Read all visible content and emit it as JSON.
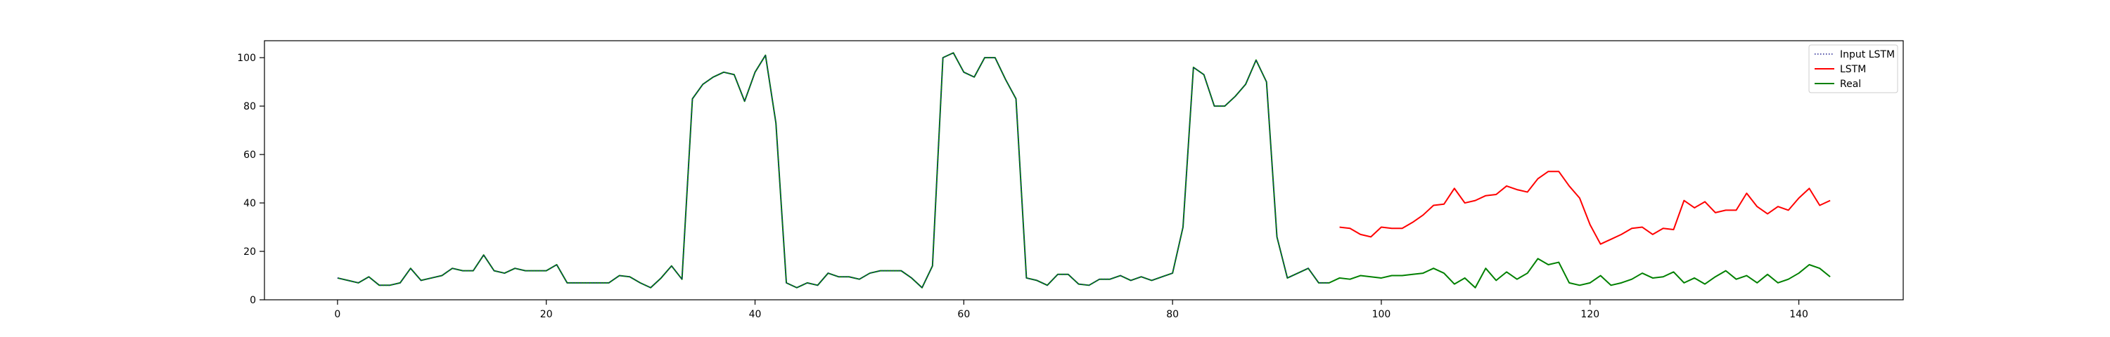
{
  "chart_data": {
    "type": "line",
    "title": "",
    "xlabel": "",
    "ylabel": "",
    "xlim": [
      -7,
      150
    ],
    "ylim": [
      0,
      107
    ],
    "xticks": [
      0,
      20,
      40,
      60,
      80,
      100,
      120,
      140
    ],
    "yticks": [
      0,
      20,
      40,
      60,
      80,
      100
    ],
    "grid": false,
    "legend_position": "top-right",
    "series": [
      {
        "name": "Input LSTM",
        "color": "#1f1f8f",
        "linestyle": "dotted",
        "x_start": 0,
        "values": [
          9,
          8,
          7,
          9.5,
          6,
          6,
          7,
          13,
          8,
          9,
          10,
          13,
          12,
          12,
          18.5,
          12,
          11,
          13,
          12,
          12,
          12,
          14.5,
          7,
          7,
          7,
          7,
          7,
          10,
          9.5,
          7,
          5,
          9,
          14,
          8.5,
          83,
          89,
          92,
          94,
          93,
          82,
          94,
          101,
          73,
          7,
          5,
          7,
          6,
          11,
          9.5,
          9.5,
          8.5,
          11,
          12,
          12,
          12,
          9,
          5,
          14,
          100,
          102,
          94,
          92,
          100,
          100,
          91,
          83,
          9,
          8,
          6,
          10.5,
          10.5,
          6.5,
          6,
          8.5,
          8.5,
          10,
          8,
          9.5,
          8,
          9.5,
          11,
          30,
          96,
          93,
          80,
          80,
          84,
          89,
          99,
          90,
          26,
          9,
          11,
          13,
          7,
          7
        ]
      },
      {
        "name": "LSTM",
        "color": "#ff0000",
        "linestyle": "solid",
        "x_start": 96,
        "values": [
          30,
          29.5,
          27,
          26,
          30,
          29.5,
          29.5,
          32,
          35,
          39,
          39.5,
          46,
          40,
          41,
          43,
          43.5,
          47,
          45.5,
          44.5,
          50,
          53,
          53,
          47,
          42,
          31,
          23,
          25,
          27,
          29.5,
          30,
          27,
          29.5,
          29,
          41,
          38,
          40.5,
          36,
          37,
          37,
          44,
          38.5,
          35.5,
          38.5,
          37,
          42,
          46,
          39,
          41
        ]
      },
      {
        "name": "Real",
        "color": "#008000",
        "linestyle": "solid",
        "x_start": 0,
        "values": [
          9,
          8,
          7,
          9.5,
          6,
          6,
          7,
          13,
          8,
          9,
          10,
          13,
          12,
          12,
          18.5,
          12,
          11,
          13,
          12,
          12,
          12,
          14.5,
          7,
          7,
          7,
          7,
          7,
          10,
          9.5,
          7,
          5,
          9,
          14,
          8.5,
          83,
          89,
          92,
          94,
          93,
          82,
          94,
          101,
          73,
          7,
          5,
          7,
          6,
          11,
          9.5,
          9.5,
          8.5,
          11,
          12,
          12,
          12,
          9,
          5,
          14,
          100,
          102,
          94,
          92,
          100,
          100,
          91,
          83,
          9,
          8,
          6,
          10.5,
          10.5,
          6.5,
          6,
          8.5,
          8.5,
          10,
          8,
          9.5,
          8,
          9.5,
          11,
          30,
          96,
          93,
          80,
          80,
          84,
          89,
          99,
          90,
          26,
          9,
          11,
          13,
          7,
          7,
          9,
          8.5,
          10,
          9.5,
          9,
          10,
          10,
          10.5,
          11,
          13,
          11,
          6.5,
          9,
          5,
          13,
          8,
          11.5,
          8.5,
          11,
          17,
          14.5,
          15.5,
          7,
          6,
          7,
          10,
          6,
          7,
          8.5,
          11,
          9,
          9.5,
          11.5,
          7,
          9,
          6.5,
          9.5,
          12,
          8.5,
          10,
          7,
          10.5,
          7,
          8.5,
          11,
          14.5,
          13,
          9.5
        ]
      }
    ]
  }
}
